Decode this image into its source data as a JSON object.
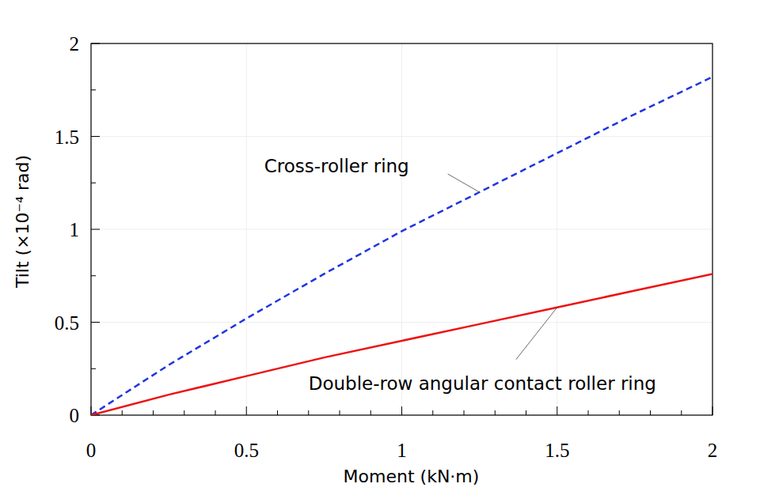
{
  "chart_data": {
    "type": "line",
    "x_label": "Moment (kN·m)",
    "y_label": "Tilt (×10⁻⁴ rad)",
    "x": [
      0,
      0.25,
      0.5,
      0.75,
      1,
      1.25,
      1.5,
      1.75,
      2
    ],
    "series": [
      {
        "name": "Cross-roller ring",
        "color": "#1f35e0",
        "line_style": "dashed",
        "values": [
          0,
          0.27,
          0.52,
          0.76,
          0.99,
          1.2,
          1.41,
          1.62,
          1.82
        ]
      },
      {
        "name": "Double-row angular contact roller ring",
        "color": "#ee1111",
        "line_style": "solid",
        "values": [
          0,
          0.11,
          0.21,
          0.31,
          0.4,
          0.49,
          0.58,
          0.67,
          0.76
        ]
      }
    ],
    "xlim": [
      0,
      2
    ],
    "xticks": [
      0,
      0.5,
      1,
      1.5,
      2
    ],
    "ylim": [
      0,
      2
    ],
    "yticks": [
      0,
      0.5,
      1,
      1.5,
      2
    ],
    "grid": true
  }
}
